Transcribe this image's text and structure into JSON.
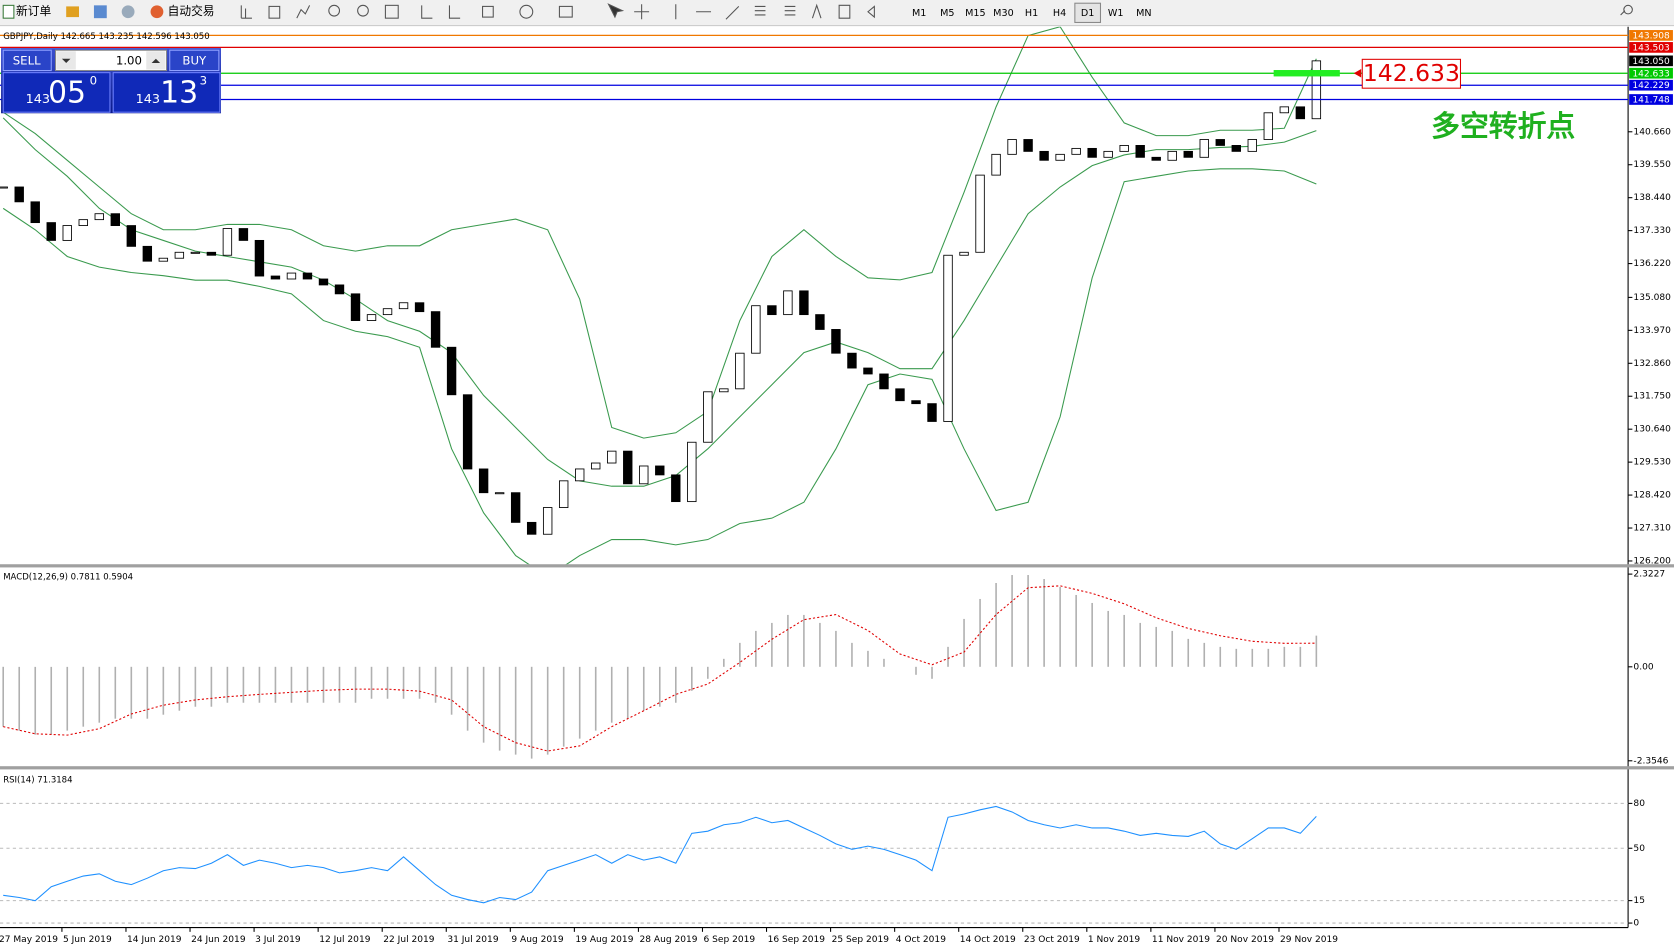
{
  "toolbar": {
    "new_order": "新订单",
    "auto_trade": "自动交易",
    "timeframes": [
      "M1",
      "M5",
      "M15",
      "M30",
      "H1",
      "H4",
      "D1",
      "W1",
      "MN"
    ],
    "active": "D1"
  },
  "trade_panel": {
    "sell": "SELL",
    "buy": "BUY",
    "lots": "1.00",
    "sell_price": {
      "small": "143",
      "big": "05",
      "sup": "0"
    },
    "buy_price": {
      "small": "143",
      "big": "13",
      "sup": "3"
    }
  },
  "chart_data": [
    {
      "type": "candlestick",
      "title": "GBPJPY,Daily 142.665 143.235 142.596 143.050",
      "closes": [
        138.8,
        138.3,
        137.6,
        137.0,
        137.5,
        137.7,
        137.9,
        137.5,
        136.8,
        136.3,
        136.4,
        136.6,
        136.6,
        136.5,
        137.4,
        137.0,
        135.8,
        135.7,
        135.9,
        135.7,
        135.5,
        135.2,
        134.3,
        134.5,
        134.7,
        134.9,
        134.6,
        133.4,
        131.8,
        129.3,
        128.5,
        128.5,
        127.5,
        127.1,
        128.0,
        128.9,
        129.3,
        129.5,
        129.9,
        128.8,
        129.4,
        129.1,
        128.2,
        130.2,
        131.9,
        132.0,
        133.2,
        134.8,
        134.5,
        135.3,
        134.5,
        134.0,
        133.2,
        132.7,
        132.5,
        132.0,
        131.6,
        131.5,
        130.9,
        136.5,
        136.6,
        139.2,
        139.9,
        140.4,
        140.0,
        139.7,
        139.9,
        140.1,
        139.8,
        140.0,
        140.2,
        139.8,
        139.7,
        140.0,
        139.8,
        140.4,
        140.2,
        140.0,
        140.4,
        141.3,
        141.5,
        141.1,
        143.05
      ],
      "band_upper": [
        141.32,
        140.6,
        139.7,
        138.8,
        137.9,
        137.36,
        137.36,
        137.54,
        137.54,
        137.36,
        136.82,
        136.64,
        136.82,
        136.82,
        137.36,
        137.54,
        137.72,
        137.36,
        135.02,
        130.7,
        130.34,
        130.52,
        131.24,
        134.3,
        136.46,
        137.36,
        136.46,
        135.74,
        135.67,
        135.92,
        138.62,
        141.5,
        143.9,
        144.2,
        142.5,
        140.96,
        140.53,
        140.53,
        140.71,
        140.71,
        140.78,
        143.12
      ],
      "band_middle": [
        141.13,
        140.06,
        139.16,
        138.08,
        137.36,
        137.0,
        136.64,
        136.46,
        136.28,
        136.1,
        135.66,
        135.02,
        134.3,
        133.94,
        133.22,
        131.78,
        130.7,
        129.62,
        128.9,
        128.72,
        128.72,
        129.08,
        129.98,
        131.06,
        132.14,
        133.22,
        133.58,
        133.22,
        132.68,
        132.68,
        134.3,
        136.1,
        137.9,
        138.8,
        139.52,
        139.88,
        140.06,
        140.06,
        140.13,
        140.17,
        140.31,
        140.7
      ],
      "band_lower": [
        138.08,
        137.36,
        136.46,
        136.1,
        135.92,
        135.81,
        135.66,
        135.66,
        135.45,
        135.2,
        134.3,
        133.94,
        133.76,
        133.4,
        129.98,
        127.82,
        126.38,
        125.66,
        126.38,
        126.92,
        126.92,
        126.74,
        126.92,
        127.46,
        127.64,
        128.18,
        129.98,
        132.14,
        132.5,
        132.32,
        129.98,
        127.9,
        128.18,
        131.06,
        135.74,
        138.98,
        139.16,
        139.34,
        139.41,
        139.41,
        139.34,
        138.9
      ],
      "band_color": "#3a9a4e",
      "up_color": "#ffffff",
      "down_color": "#000000",
      "ylim": [
        126.09,
        144.2
      ],
      "yticks": [
        {
          "value": 140.66,
          "label": "140.660"
        },
        {
          "value": 139.55,
          "label": "139.550"
        },
        {
          "value": 138.44,
          "label": "138.440"
        },
        {
          "value": 137.33,
          "label": "137.330"
        },
        {
          "value": 136.22,
          "label": "136.220"
        },
        {
          "value": 135.08,
          "label": "135.080"
        },
        {
          "value": 133.97,
          "label": "133.970"
        },
        {
          "value": 132.86,
          "label": "132.860"
        },
        {
          "value": 131.75,
          "label": "131.750"
        },
        {
          "value": 130.64,
          "label": "130.640"
        },
        {
          "value": 129.53,
          "label": "129.530"
        },
        {
          "value": 128.42,
          "label": "128.420"
        },
        {
          "value": 127.31,
          "label": "127.310"
        },
        {
          "value": 126.2,
          "label": "126.200"
        }
      ],
      "grid": false,
      "price_lines": [
        {
          "value": 143.908,
          "color": "#f07800"
        },
        {
          "value": 143.503,
          "color": "#e00000"
        },
        {
          "value": 143.05,
          "label": "143.050",
          "color": "#000000",
          "show_line": false
        },
        {
          "value": 142.633,
          "color": "#00c800"
        },
        {
          "value": 142.229,
          "color": "#0000e0"
        },
        {
          "value": 141.748,
          "color": "#0000e0"
        }
      ],
      "marker": {
        "value": 142.633,
        "label": "142.633",
        "color": "#e00000",
        "bar_color": "#22ee22"
      },
      "annotation": "多空转折点",
      "annotation_color": "#1fb01f"
    },
    {
      "type": "macd",
      "title": "MACD(12,26,9) 0.7811 0.5904",
      "values": [
        -1.5,
        -1.6,
        -1.7,
        -1.7,
        -1.6,
        -1.5,
        -1.4,
        -1.3,
        -1.3,
        -1.3,
        -1.2,
        -1.1,
        -1.0,
        -1.0,
        -0.9,
        -0.9,
        -0.9,
        -0.9,
        -0.9,
        -0.9,
        -0.9,
        -0.9,
        -0.9,
        -0.8,
        -0.8,
        -0.8,
        -0.8,
        -0.9,
        -1.2,
        -1.6,
        -1.9,
        -2.1,
        -2.2,
        -2.3,
        -2.2,
        -2.0,
        -1.8,
        -1.6,
        -1.4,
        -1.3,
        -1.1,
        -1.0,
        -0.9,
        -0.6,
        -0.3,
        0.2,
        0.6,
        0.9,
        1.1,
        1.3,
        1.3,
        1.1,
        0.9,
        0.6,
        0.4,
        0.2,
        0.0,
        -0.2,
        -0.3,
        0.5,
        1.2,
        1.7,
        2.1,
        2.3,
        2.3,
        2.2,
        2.0,
        1.8,
        1.6,
        1.4,
        1.3,
        1.1,
        1.0,
        0.9,
        0.7,
        0.6,
        0.5,
        0.45,
        0.45,
        0.45,
        0.5,
        0.5,
        0.7811
      ],
      "signal": [
        -1.5,
        -1.68,
        -1.71,
        -1.55,
        -1.18,
        -0.96,
        -0.83,
        -0.75,
        -0.69,
        -0.64,
        -0.59,
        -0.56,
        -0.56,
        -0.61,
        -0.83,
        -1.5,
        -1.9,
        -2.11,
        -1.98,
        -1.5,
        -1.1,
        -0.69,
        -0.43,
        0.11,
        0.69,
        1.18,
        1.31,
        0.91,
        0.32,
        0.05,
        0.37,
        1.31,
        1.98,
        2.03,
        1.84,
        1.58,
        1.23,
        0.96,
        0.78,
        0.64,
        0.59,
        0.5904
      ],
      "color": "#b0b0b0",
      "signal_color": "#e00000",
      "ylim": [
        -2.49,
        2.49
      ],
      "yticks": [
        2.3227,
        {
          "value": 0,
          "label": "0.00"
        },
        -2.3546
      ],
      "grid": false
    },
    {
      "type": "line",
      "title": "RSI(14) 71.3184",
      "values": [
        18.6,
        17.1,
        15.0,
        24.3,
        27.9,
        31.4,
        32.9,
        27.9,
        25.7,
        30.0,
        35.0,
        37.1,
        36.4,
        40.0,
        45.7,
        38.6,
        42.1,
        40.0,
        37.1,
        38.6,
        37.1,
        33.6,
        35.0,
        37.1,
        35.0,
        44.3,
        35.0,
        25.7,
        18.6,
        15.7,
        13.6,
        17.1,
        15.7,
        20.7,
        35.0,
        38.6,
        42.1,
        45.7,
        40.0,
        45.7,
        42.1,
        44.3,
        40.0,
        60.0,
        61.4,
        65.7,
        67.1,
        70.7,
        67.1,
        68.6,
        63.6,
        58.6,
        52.9,
        49.3,
        51.4,
        49.3,
        45.7,
        42.1,
        35.0,
        70.7,
        72.9,
        75.7,
        77.9,
        74.3,
        68.6,
        65.7,
        63.6,
        65.7,
        63.6,
        63.6,
        61.4,
        58.6,
        60.0,
        58.6,
        57.9,
        61.4,
        52.9,
        49.3,
        56.4,
        63.6,
        63.6,
        60.0,
        71.32
      ],
      "color": "#1e90ff",
      "ylim": [
        -3,
        102
      ],
      "yticks": [
        80,
        50,
        15,
        0
      ],
      "grid": true,
      "x_labels": [
        "27 May 2019",
        "5 Jun 2019",
        "14 Jun 2019",
        "24 Jun 2019",
        "3 Jul 2019",
        "12 Jul 2019",
        "22 Jul 2019",
        "31 Jul 2019",
        "9 Aug 2019",
        "19 Aug 2019",
        "28 Aug 2019",
        "6 Sep 2019",
        "16 Sep 2019",
        "25 Sep 2019",
        "4 Oct 2019",
        "14 Oct 2019",
        "23 Oct 2019",
        "1 Nov 2019",
        "11 Nov 2019",
        "20 Nov 2019",
        "29 Nov 2019"
      ]
    }
  ]
}
